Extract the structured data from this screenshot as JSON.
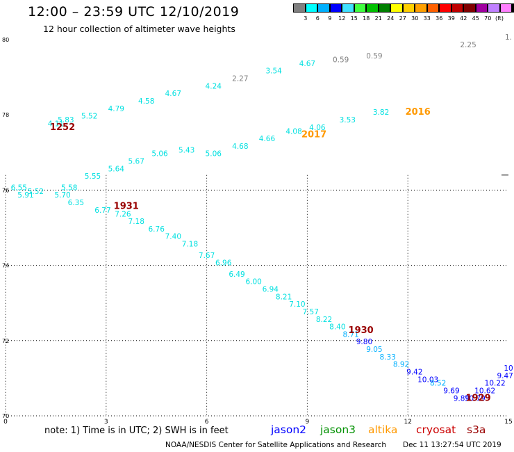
{
  "header": {
    "title": "12:00 – 23:59 UTC 12/10/2019",
    "subtitle": "12 hour collection of altimeter wave heights"
  },
  "color_scale": {
    "unit": "(ft)",
    "colors": [
      "#808080",
      "#00ffff",
      "#00b0ff",
      "#0000ff",
      "#40e0ff",
      "#40ff40",
      "#00c000",
      "#008000",
      "#ffff00",
      "#ffd000",
      "#ffa000",
      "#ff6000",
      "#ff0000",
      "#c00000",
      "#800000",
      "#a000a0",
      "#c080ff",
      "#ff80ff",
      "#000000"
    ],
    "labels": [
      "3",
      "6",
      "9",
      "12",
      "15",
      "18",
      "21",
      "24",
      "27",
      "30",
      "33",
      "36",
      "39",
      "42",
      "45",
      "70"
    ]
  },
  "footer": {
    "note": "note:  1) Time is in UTC;  2) SWH is in feet",
    "legend": [
      {
        "name": "jason2",
        "color": "#0000ff"
      },
      {
        "name": "jason3",
        "color": "#009000"
      },
      {
        "name": "altika",
        "color": "#ff9900"
      },
      {
        "name": "cryosat",
        "color": "#cc0000"
      },
      {
        "name": "s3a",
        "color": "#990000"
      }
    ],
    "credit": "NOAA/NESDIS Center for Satellite Applications and Research",
    "stamp": "Dec 11 13:27:54 UTC 2019"
  },
  "chart_data": {
    "type": "scatter",
    "xlim": [
      0,
      15
    ],
    "ylim": [
      70,
      80
    ],
    "x_ticks": [
      "0",
      "3",
      "6",
      "9",
      "12",
      "15"
    ],
    "y_ticks": [
      "70",
      "72",
      "74",
      "76",
      "78",
      "80"
    ],
    "y_tick_values": [
      70,
      72,
      74,
      76,
      78,
      80
    ],
    "grid": "dotted",
    "points": [
      {
        "x": 1.5,
        "y": 77.7,
        "label": "4.11",
        "color": "#00e0e0"
      },
      {
        "x": 1.8,
        "y": 77.8,
        "label": "5.83",
        "color": "#00e0e0"
      },
      {
        "x": 2.5,
        "y": 77.9,
        "label": "5.52",
        "color": "#00e0e0"
      },
      {
        "x": 3.3,
        "y": 78.1,
        "label": "4.79",
        "color": "#00e0e0"
      },
      {
        "x": 4.2,
        "y": 78.3,
        "label": "4.58",
        "color": "#00e0e0"
      },
      {
        "x": 5.0,
        "y": 78.5,
        "label": "4.67",
        "color": "#00e0e0"
      },
      {
        "x": 6.2,
        "y": 78.7,
        "label": "4.24",
        "color": "#00e0e0"
      },
      {
        "x": 7.0,
        "y": 78.9,
        "label": "2.27",
        "color": "#808080"
      },
      {
        "x": 8.0,
        "y": 79.1,
        "label": "3.54",
        "color": "#00e0e0"
      },
      {
        "x": 9.0,
        "y": 79.3,
        "label": "4.67",
        "color": "#00e0e0"
      },
      {
        "x": 10.0,
        "y": 79.4,
        "label": "0.59",
        "color": "#808080"
      },
      {
        "x": 11.0,
        "y": 79.5,
        "label": "0.59",
        "color": "#808080"
      },
      {
        "x": 13.8,
        "y": 79.8,
        "label": "2.25",
        "color": "#808080"
      },
      {
        "x": 15.0,
        "y": 80.0,
        "label": "1.",
        "color": "#808080"
      },
      {
        "x": 6.2,
        "y": 76.9,
        "label": "5.06",
        "color": "#00e0e0"
      },
      {
        "x": 7.0,
        "y": 77.1,
        "label": "4.68",
        "color": "#00e0e0"
      },
      {
        "x": 7.8,
        "y": 77.3,
        "label": "4.66",
        "color": "#00e0e0"
      },
      {
        "x": 8.6,
        "y": 77.5,
        "label": "4.08",
        "color": "#00e0e0"
      },
      {
        "x": 9.3,
        "y": 77.6,
        "label": "4.06",
        "color": "#00e0e0"
      },
      {
        "x": 10.2,
        "y": 77.8,
        "label": "3.53",
        "color": "#00e0e0"
      },
      {
        "x": 11.2,
        "y": 78.0,
        "label": "3.82",
        "color": "#00e0e0"
      },
      {
        "x": 0.4,
        "y": 76.0,
        "label": "6.55",
        "color": "#00e0e0"
      },
      {
        "x": 0.9,
        "y": 75.9,
        "label": "5.52",
        "color": "#00e0e0"
      },
      {
        "x": 1.9,
        "y": 76.0,
        "label": "5.58",
        "color": "#00e0e0"
      },
      {
        "x": 2.6,
        "y": 76.3,
        "label": "5.55",
        "color": "#00e0e0"
      },
      {
        "x": 3.3,
        "y": 76.5,
        "label": "5.64",
        "color": "#00e0e0"
      },
      {
        "x": 3.9,
        "y": 76.7,
        "label": "5.67",
        "color": "#00e0e0"
      },
      {
        "x": 4.6,
        "y": 76.9,
        "label": "5.06",
        "color": "#00e0e0"
      },
      {
        "x": 5.4,
        "y": 77.0,
        "label": "5.43",
        "color": "#00e0e0"
      },
      {
        "x": 0.6,
        "y": 75.8,
        "label": "5.91",
        "color": "#00e0e0"
      },
      {
        "x": 1.7,
        "y": 75.8,
        "label": "5.70",
        "color": "#00e0e0"
      },
      {
        "x": 2.1,
        "y": 75.6,
        "label": "6.35",
        "color": "#00e0e0"
      },
      {
        "x": 2.9,
        "y": 75.4,
        "label": "6.77",
        "color": "#00e0e0"
      },
      {
        "x": 3.5,
        "y": 75.3,
        "label": "7.26",
        "color": "#00e0e0"
      },
      {
        "x": 3.9,
        "y": 75.1,
        "label": "7.18",
        "color": "#00e0e0"
      },
      {
        "x": 4.5,
        "y": 74.9,
        "label": "6.76",
        "color": "#00e0e0"
      },
      {
        "x": 5.0,
        "y": 74.7,
        "label": "7.40",
        "color": "#00e0e0"
      },
      {
        "x": 5.5,
        "y": 74.5,
        "label": "7.18",
        "color": "#00e0e0"
      },
      {
        "x": 6.0,
        "y": 74.2,
        "label": "7.67",
        "color": "#00e0e0"
      },
      {
        "x": 6.5,
        "y": 74.0,
        "label": "6.96",
        "color": "#00e0e0"
      },
      {
        "x": 6.9,
        "y": 73.7,
        "label": "6.49",
        "color": "#00e0e0"
      },
      {
        "x": 7.4,
        "y": 73.5,
        "label": "6.00",
        "color": "#00e0e0"
      },
      {
        "x": 7.9,
        "y": 73.3,
        "label": "6.94",
        "color": "#00e0e0"
      },
      {
        "x": 8.3,
        "y": 73.1,
        "label": "8.21",
        "color": "#00e0e0"
      },
      {
        "x": 8.7,
        "y": 72.9,
        "label": "7.10",
        "color": "#00e0e0"
      },
      {
        "x": 9.1,
        "y": 72.7,
        "label": "7.57",
        "color": "#00e0e0"
      },
      {
        "x": 9.5,
        "y": 72.5,
        "label": "8.22",
        "color": "#00e0e0"
      },
      {
        "x": 9.9,
        "y": 72.3,
        "label": "8.40",
        "color": "#00e0e0"
      },
      {
        "x": 10.3,
        "y": 72.1,
        "label": "8.71",
        "color": "#00b0ff"
      },
      {
        "x": 10.7,
        "y": 71.9,
        "label": "9.80",
        "color": "#0000ff"
      },
      {
        "x": 11.0,
        "y": 71.7,
        "label": "9.05",
        "color": "#00b0ff"
      },
      {
        "x": 11.4,
        "y": 71.5,
        "label": "8.33",
        "color": "#00b0ff"
      },
      {
        "x": 11.8,
        "y": 71.3,
        "label": "8.92",
        "color": "#00b0ff"
      },
      {
        "x": 12.2,
        "y": 71.1,
        "label": "9.42",
        "color": "#0000ff"
      },
      {
        "x": 12.6,
        "y": 70.9,
        "label": "10.03",
        "color": "#0000ff"
      },
      {
        "x": 12.9,
        "y": 70.8,
        "label": "8.52",
        "color": "#00b0ff"
      },
      {
        "x": 13.3,
        "y": 70.6,
        "label": "9.69",
        "color": "#0000ff"
      },
      {
        "x": 13.6,
        "y": 70.4,
        "label": "9.89",
        "color": "#0000ff"
      },
      {
        "x": 14.0,
        "y": 70.4,
        "label": "10.79",
        "color": "#0000ff"
      },
      {
        "x": 14.3,
        "y": 70.6,
        "label": "10.62",
        "color": "#0000ff"
      },
      {
        "x": 14.6,
        "y": 70.8,
        "label": "10.22",
        "color": "#0000ff"
      },
      {
        "x": 14.9,
        "y": 71.0,
        "label": "9.47",
        "color": "#0000ff"
      },
      {
        "x": 15.0,
        "y": 71.2,
        "label": "10",
        "color": "#0000ff"
      }
    ],
    "pass_labels": [
      {
        "x": 1.7,
        "y": 77.6,
        "label": "1252",
        "color": "#990000"
      },
      {
        "x": 3.6,
        "y": 75.5,
        "label": "1931",
        "color": "#990000"
      },
      {
        "x": 10.6,
        "y": 72.2,
        "label": "1930",
        "color": "#990000"
      },
      {
        "x": 14.1,
        "y": 70.4,
        "label": "1929",
        "color": "#990000"
      },
      {
        "x": 9.2,
        "y": 77.4,
        "label": "2017",
        "color": "#ff9900"
      },
      {
        "x": 12.3,
        "y": 78.0,
        "label": "2016",
        "color": "#ff9900"
      }
    ]
  }
}
